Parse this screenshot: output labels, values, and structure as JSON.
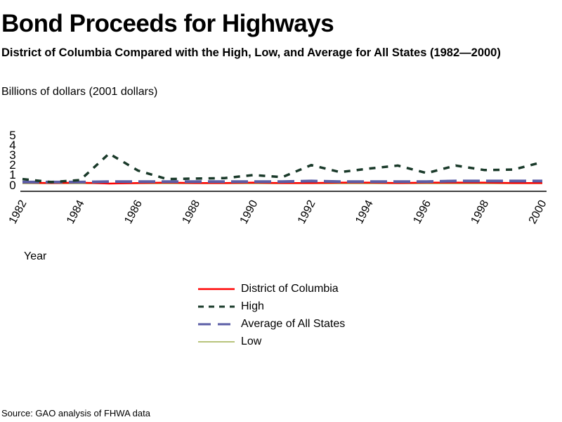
{
  "chart_data": {
    "type": "line",
    "title": "Bond Proceeds for Highways",
    "subtitle": "District of Columbia Compared with the High, Low, and Average for All States (1982—2000)",
    "ylabel": "Billions of dollars (2001 dollars)",
    "xlabel": "Year",
    "source": "Source: GAO analysis of FHWA data",
    "ylim": [
      0,
      5
    ],
    "yticks": [
      "0",
      "1",
      "2",
      "3",
      "4",
      "5"
    ],
    "x": [
      1982,
      1983,
      1984,
      1985,
      1986,
      1987,
      1988,
      1989,
      1990,
      1991,
      1992,
      1993,
      1994,
      1995,
      1996,
      1997,
      1998,
      1999,
      2000
    ],
    "xticks": [
      "1982",
      "1984",
      "1986",
      "1988",
      "1990",
      "1992",
      "1994",
      "1996",
      "1998",
      "2000"
    ],
    "series": [
      {
        "name": "District of Columbia",
        "color": "#ff0000",
        "style": "solid",
        "values": [
          0.1,
          0.05,
          0.1,
          0.0,
          0.05,
          0.1,
          0.05,
          0.05,
          0.1,
          0.05,
          0.05,
          0.1,
          0.1,
          0.05,
          0.1,
          0.1,
          0.1,
          0.05,
          0.05
        ]
      },
      {
        "name": "High",
        "color": "#1a3a2a",
        "style": "dashed",
        "values": [
          0.45,
          0.15,
          0.35,
          3.0,
          1.3,
          0.45,
          0.5,
          0.55,
          0.85,
          0.65,
          1.85,
          1.15,
          1.5,
          1.8,
          1.05,
          1.8,
          1.35,
          1.4,
          2.15
        ]
      },
      {
        "name": "Average of All States",
        "color": "#5b5ea6",
        "style": "longdash",
        "values": [
          0.15,
          0.15,
          0.15,
          0.2,
          0.2,
          0.2,
          0.2,
          0.2,
          0.2,
          0.2,
          0.25,
          0.2,
          0.2,
          0.2,
          0.2,
          0.25,
          0.25,
          0.25,
          0.25
        ]
      },
      {
        "name": "Low",
        "color": "#a0b050",
        "style": "solid",
        "values": [
          0,
          0,
          0,
          0,
          0,
          0,
          0,
          0,
          0,
          0,
          0,
          0,
          0,
          0,
          0,
          0,
          0,
          0,
          0
        ]
      }
    ],
    "legend_position": "bottom-center",
    "grid": false
  }
}
